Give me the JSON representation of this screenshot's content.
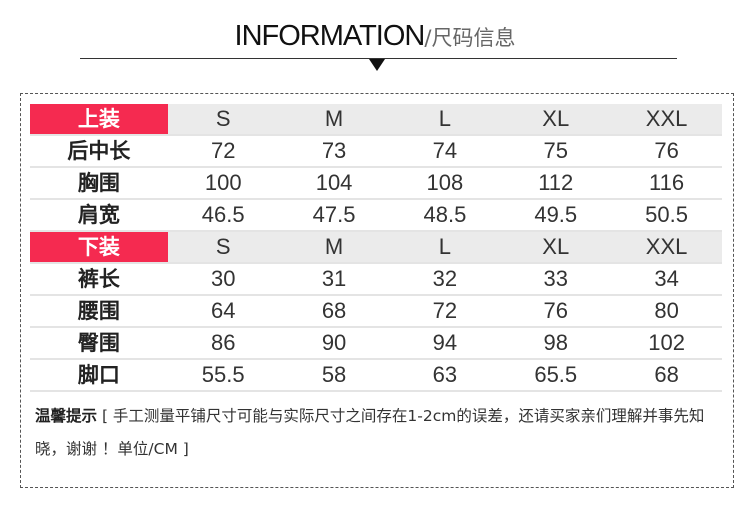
{
  "header": {
    "title_en": "INFORMATION",
    "title_cn": "/尺码信息"
  },
  "colors": {
    "accent": "#f52a50",
    "header_bg": "#ebebeb"
  },
  "tops": {
    "label": "上装",
    "sizes": [
      "S",
      "M",
      "L",
      "XL",
      "XXL"
    ],
    "rows": [
      {
        "name": "后中长",
        "values": [
          "72",
          "73",
          "74",
          "75",
          "76"
        ]
      },
      {
        "name": "胸围",
        "values": [
          "100",
          "104",
          "108",
          "112",
          "116"
        ]
      },
      {
        "name": "肩宽",
        "values": [
          "46.5",
          "47.5",
          "48.5",
          "49.5",
          "50.5"
        ]
      }
    ]
  },
  "bottoms": {
    "label": "下装",
    "sizes": [
      "S",
      "M",
      "L",
      "XL",
      "XXL"
    ],
    "rows": [
      {
        "name": "裤长",
        "values": [
          "30",
          "31",
          "32",
          "33",
          "34"
        ]
      },
      {
        "name": "腰围",
        "values": [
          "64",
          "68",
          "72",
          "76",
          "80"
        ]
      },
      {
        "name": "臀围",
        "values": [
          "86",
          "90",
          "94",
          "98",
          "102"
        ]
      },
      {
        "name": "脚口",
        "values": [
          "55.5",
          "58",
          "63",
          "65.5",
          "68"
        ]
      }
    ]
  },
  "note": {
    "label": "温馨提示",
    "text": " [ 手工测量平铺尺寸可能与实际尺寸之间存在1-2cm的误差，还请买家亲们理解并事先知晓，谢谢 ！单位/CM ]"
  }
}
